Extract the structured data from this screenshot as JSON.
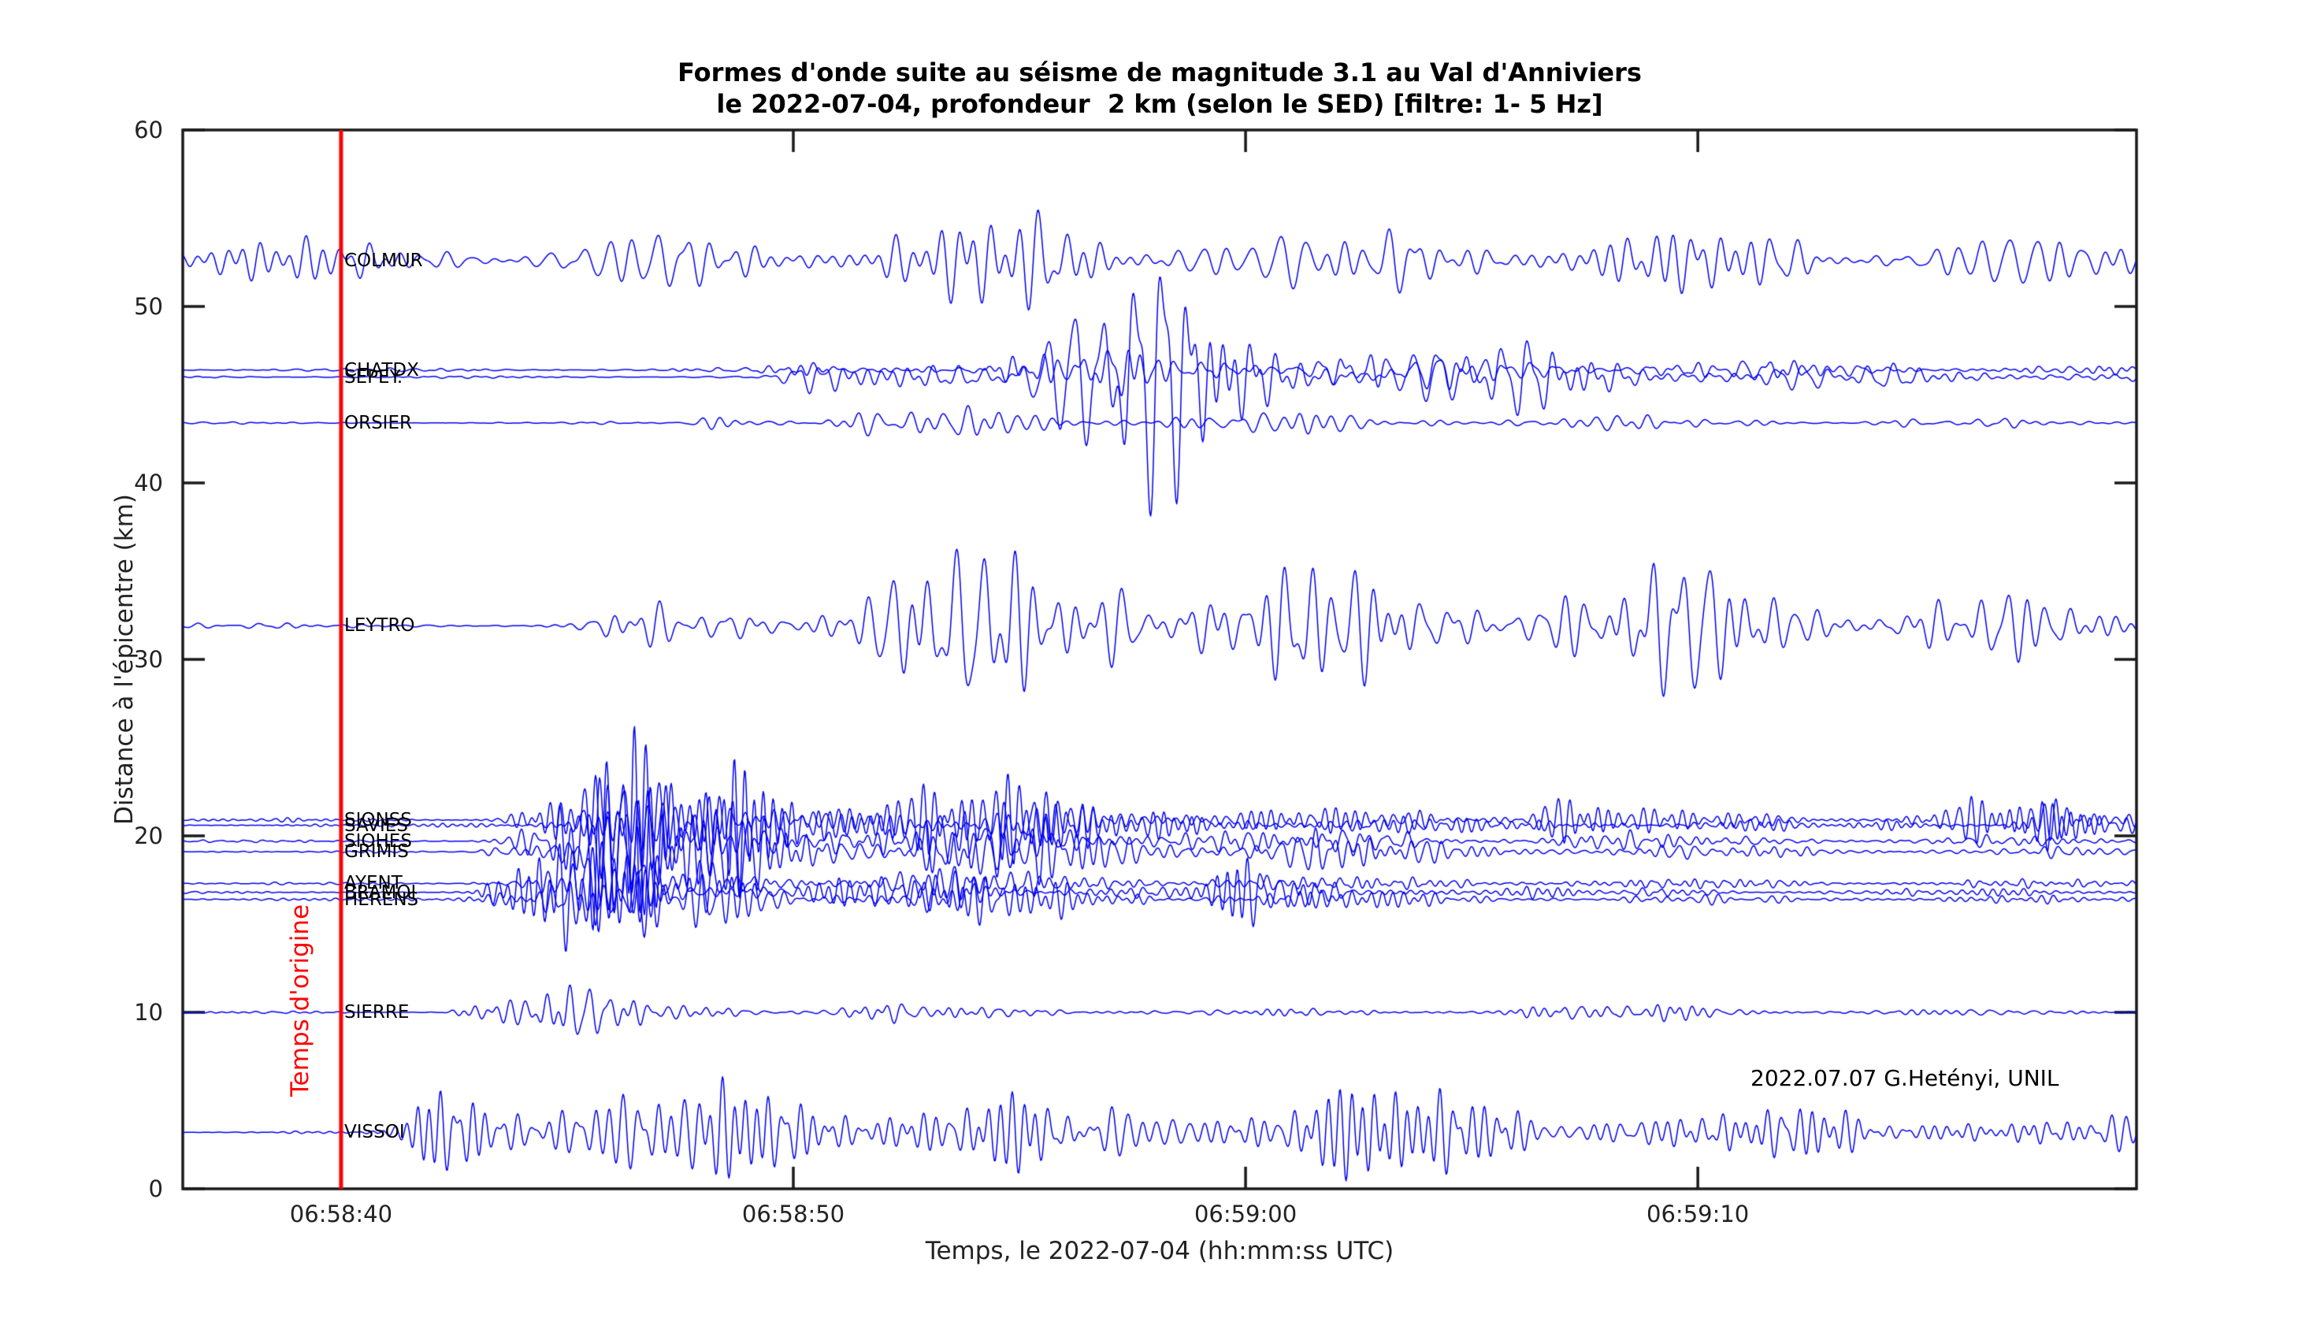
{
  "figure": {
    "title_line1": "Formes d'onde suite au séisme de magnitude 3.1 au Val d'Anniviers",
    "title_line2": "le 2022-07-04, profondeur  2 km (selon le SED) [filtre: 1- 5 Hz]",
    "attribution": "2022.07.07 G.Hetényi, UNIL"
  },
  "chart_data": {
    "type": "line",
    "subtype": "seismogram-record-section",
    "title": "Formes d'onde suite au séisme de magnitude 3.1 au Val d'Anniviers le 2022-07-04, profondeur 2 km (selon le SED) [filtre: 1- 5 Hz]",
    "xlabel": "Temps, le 2022-07-04 (hh:mm:ss UTC)",
    "ylabel": "Distance à l'épicentre (km)",
    "grid": false,
    "legend": null,
    "x_axis": {
      "units": "seconds after 06:58:00 UTC",
      "min": 36.5,
      "max": 79.7,
      "ticks": [
        {
          "value": 40,
          "label": "06:58:40"
        },
        {
          "value": 50,
          "label": "06:58:50"
        },
        {
          "value": 60,
          "label": "06:59:00"
        },
        {
          "value": 70,
          "label": "06:59:10"
        }
      ]
    },
    "y_axis": {
      "min": 0,
      "max": 60,
      "ticks": [
        0,
        10,
        20,
        30,
        40,
        50,
        60
      ]
    },
    "origin_line": {
      "value": 40,
      "label": "Temps d'origine",
      "color": "#ff0000"
    },
    "colors": {
      "trace": "#0000ee",
      "axis": "#1a1a1a",
      "origin": "#ff0000"
    },
    "stations": [
      {
        "name": "COLMUR",
        "distance_km": 52.6,
        "quiet": 1.0,
        "freq": [
          1.0,
          3.0
        ],
        "bursts": [
          {
            "t": 57.0,
            "amp": 1.0,
            "rise": 6.0,
            "decay": 14
          }
        ]
      },
      {
        "name": "CHATDX",
        "distance_km": 46.4,
        "quiet": 0.07,
        "freq": [
          1.5,
          4.5
        ],
        "bursts": [
          {
            "t": 50.8,
            "amp": 0.45,
            "rise": 1.0,
            "decay": 28
          },
          {
            "t": 58.0,
            "amp": 0.8,
            "rise": 2.5,
            "decay": 8
          }
        ]
      },
      {
        "name": "SEPEY.",
        "distance_km": 46.0,
        "quiet": 0.06,
        "freq": [
          1.3,
          4.0
        ],
        "bursts": [
          {
            "t": 50.6,
            "amp": 0.55,
            "rise": 0.6,
            "decay": 4
          },
          {
            "t": 57.6,
            "amp": 6.2,
            "rise": 2.4,
            "decay": 4.2
          },
          {
            "t": 67.0,
            "amp": 1.1,
            "rise": 3.0,
            "decay": 12
          }
        ]
      },
      {
        "name": "ORSIER",
        "distance_km": 43.4,
        "quiet": 0.05,
        "freq": [
          1.5,
          4.5
        ],
        "bursts": [
          {
            "t": 48.4,
            "amp": 0.6,
            "rise": 0.5,
            "decay": 3
          },
          {
            "t": 54.0,
            "amp": 0.5,
            "rise": 2.5,
            "decay": 20
          }
        ]
      },
      {
        "name": "LEYTRO",
        "distance_km": 31.9,
        "quiet": 0.12,
        "freq": [
          1.0,
          3.3
        ],
        "bursts": [
          {
            "t": 46.3,
            "amp": 0.9,
            "rise": 0.5,
            "decay": 3
          },
          {
            "t": 51.5,
            "amp": 2.1,
            "rise": 1.5,
            "decay": 5
          },
          {
            "t": 58.0,
            "amp": 3.4,
            "rise": 3.5,
            "decay": 10
          },
          {
            "t": 71.0,
            "amp": 1.6,
            "rise": 4.0,
            "decay": 9
          }
        ]
      },
      {
        "name": "SIONSS",
        "distance_km": 20.9,
        "quiet": 0.08,
        "freq": [
          2.0,
          5.0
        ],
        "bursts": [
          {
            "t": 43.8,
            "amp": 0.7,
            "rise": 0.3,
            "decay": 2
          },
          {
            "t": 46.4,
            "amp": 3.1,
            "rise": 1.1,
            "decay": 4.5
          },
          {
            "t": 55.0,
            "amp": 0.9,
            "rise": 4.0,
            "decay": 14
          },
          {
            "t": 66.8,
            "amp": 2.2,
            "rise": 0.25,
            "decay": 0.9
          },
          {
            "t": 76.5,
            "amp": 0.9,
            "rise": 1.0,
            "decay": 3
          }
        ]
      },
      {
        "name": "SAVIES",
        "distance_km": 20.6,
        "quiet": 0.07,
        "freq": [
          2.0,
          5.0
        ],
        "bursts": [
          {
            "t": 43.9,
            "amp": 0.6,
            "rise": 0.3,
            "decay": 2
          },
          {
            "t": 46.6,
            "amp": 2.7,
            "rise": 1.0,
            "decay": 4
          },
          {
            "t": 56.0,
            "amp": 0.7,
            "rise": 4.0,
            "decay": 14
          },
          {
            "t": 77.8,
            "amp": 1.3,
            "rise": 0.5,
            "decay": 2
          }
        ]
      },
      {
        "name": "SIOHES",
        "distance_km": 19.7,
        "quiet": 0.07,
        "freq": [
          2.0,
          5.0
        ],
        "bursts": [
          {
            "t": 43.7,
            "amp": 0.6,
            "rise": 0.3,
            "decay": 2
          },
          {
            "t": 46.2,
            "amp": 3.3,
            "rise": 1.0,
            "decay": 4.6
          },
          {
            "t": 55.0,
            "amp": 0.7,
            "rise": 4.0,
            "decay": 14
          }
        ]
      },
      {
        "name": "GRIMIS",
        "distance_km": 19.1,
        "quiet": 0.05,
        "freq": [
          2.2,
          5.0
        ],
        "bursts": [
          {
            "t": 43.6,
            "amp": 0.5,
            "rise": 0.3,
            "decay": 2
          },
          {
            "t": 46.0,
            "amp": 3.7,
            "rise": 1.0,
            "decay": 5
          },
          {
            "t": 55.0,
            "amp": 0.75,
            "rise": 4.0,
            "decay": 14
          },
          {
            "t": 60.6,
            "amp": 1.5,
            "rise": 0.3,
            "decay": 1
          }
        ]
      },
      {
        "name": "AYENT",
        "distance_km": 17.3,
        "quiet": 0.06,
        "freq": [
          2.2,
          5.0
        ],
        "bursts": [
          {
            "t": 43.3,
            "amp": 0.5,
            "rise": 0.3,
            "decay": 2
          },
          {
            "t": 45.4,
            "amp": 1.7,
            "rise": 0.8,
            "decay": 4
          },
          {
            "t": 54.0,
            "amp": 0.5,
            "rise": 4.0,
            "decay": 14
          }
        ]
      },
      {
        "name": "BRAMOI",
        "distance_km": 16.8,
        "quiet": 0.06,
        "freq": [
          2.2,
          5.0
        ],
        "bursts": [
          {
            "t": 43.2,
            "amp": 0.5,
            "rise": 0.3,
            "decay": 2
          },
          {
            "t": 45.3,
            "amp": 1.9,
            "rise": 0.8,
            "decay": 4
          },
          {
            "t": 54.0,
            "amp": 0.5,
            "rise": 4.0,
            "decay": 14
          },
          {
            "t": 59.9,
            "amp": 1.7,
            "rise": 0.3,
            "decay": 1
          }
        ]
      },
      {
        "name": "HERENS",
        "distance_km": 16.4,
        "quiet": 0.06,
        "freq": [
          2.2,
          5.0
        ],
        "bursts": [
          {
            "t": 43.1,
            "amp": 0.6,
            "rise": 0.3,
            "decay": 2
          },
          {
            "t": 45.2,
            "amp": 2.3,
            "rise": 0.9,
            "decay": 4.5
          },
          {
            "t": 54.0,
            "amp": 0.5,
            "rise": 4.0,
            "decay": 14
          }
        ]
      },
      {
        "name": "SIERRE",
        "distance_km": 10.0,
        "quiet": 0.05,
        "freq": [
          2.0,
          5.0
        ],
        "bursts": [
          {
            "t": 42.7,
            "amp": 0.5,
            "rise": 0.2,
            "decay": 1.5
          },
          {
            "t": 44.3,
            "amp": 1.1,
            "rise": 0.6,
            "decay": 3
          },
          {
            "t": 53.0,
            "amp": 0.22,
            "rise": 4.0,
            "decay": 12
          },
          {
            "t": 67.5,
            "amp": 0.5,
            "rise": 1.5,
            "decay": 4
          }
        ]
      },
      {
        "name": "VISSOI",
        "distance_km": 3.2,
        "quiet": 0.04,
        "freq": [
          1.6,
          4.6
        ],
        "bursts": [
          {
            "t": 41.9,
            "amp": 1.4,
            "rise": 0.25,
            "decay": 1.5
          },
          {
            "t": 43.0,
            "amp": 3.1,
            "rise": 0.7,
            "decay": 5
          },
          {
            "t": 49.0,
            "amp": 1.7,
            "rise": 3.0,
            "decay": 9
          },
          {
            "t": 63.0,
            "amp": 1.8,
            "rise": 6.0,
            "decay": 20
          }
        ]
      }
    ]
  }
}
